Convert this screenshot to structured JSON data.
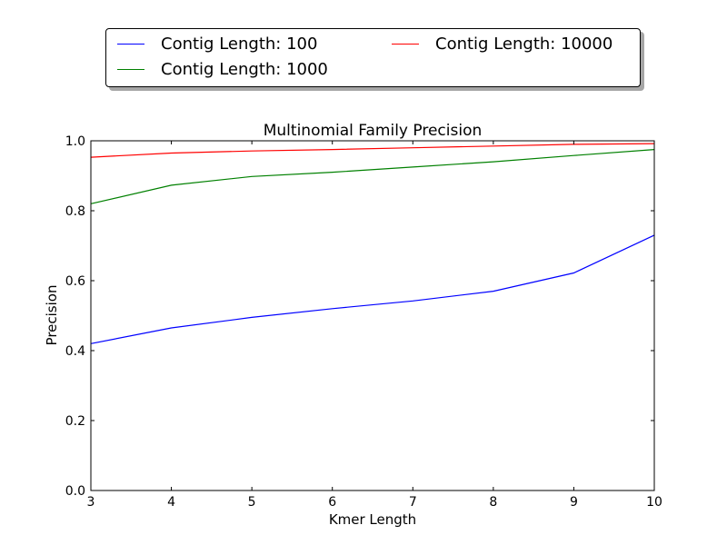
{
  "chart_data": {
    "type": "line",
    "title": "Multinomial Family Precision",
    "xlabel": "Kmer Length",
    "ylabel": "Precision",
    "x": [
      3,
      4,
      5,
      6,
      7,
      8,
      9,
      10
    ],
    "xlim": [
      3,
      10
    ],
    "ylim": [
      0.0,
      1.0
    ],
    "xticks": [
      "3",
      "4",
      "5",
      "6",
      "7",
      "8",
      "9",
      "10"
    ],
    "yticks": [
      "0.0",
      "0.2",
      "0.4",
      "0.6",
      "0.8",
      "1.0"
    ],
    "grid": false,
    "legend_position": "top, outside plot",
    "series": [
      {
        "name": "Contig Length: 100",
        "color": "#0000ff",
        "values": [
          0.42,
          0.465,
          0.495,
          0.52,
          0.542,
          0.57,
          0.622,
          0.73
        ]
      },
      {
        "name": "Contig Length: 1000",
        "color": "#008000",
        "values": [
          0.82,
          0.873,
          0.898,
          0.91,
          0.925,
          0.94,
          0.958,
          0.975
        ]
      },
      {
        "name": "Contig Length: 10000",
        "color": "#ff0000",
        "values": [
          0.953,
          0.965,
          0.971,
          0.975,
          0.98,
          0.985,
          0.99,
          0.992
        ]
      }
    ]
  }
}
